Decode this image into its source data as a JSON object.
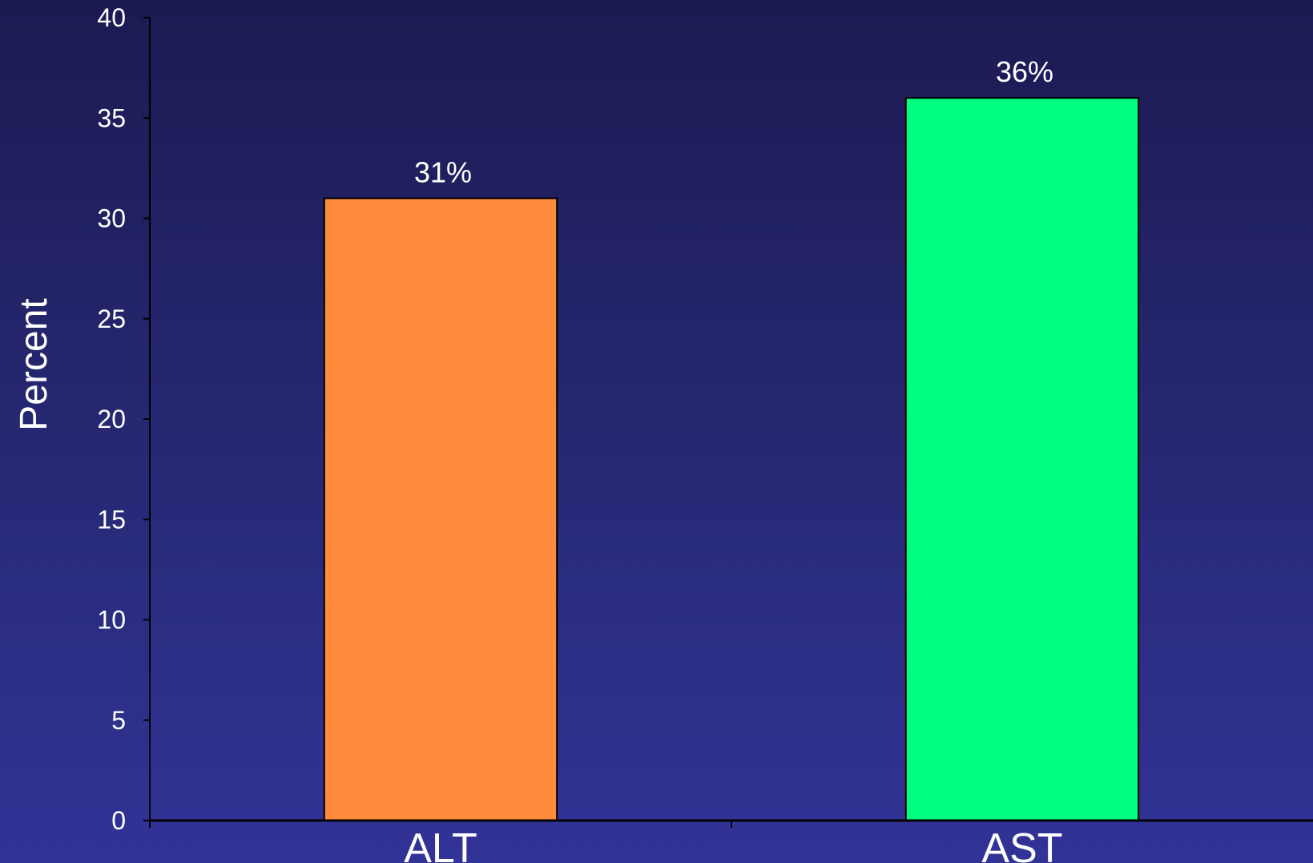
{
  "chart_data": {
    "type": "bar",
    "categories": [
      "ALT",
      "AST"
    ],
    "values": [
      31,
      36
    ],
    "value_labels": [
      "31%",
      "36%"
    ],
    "colors": [
      "#ff8c3c",
      "#00ff80"
    ],
    "title": "",
    "xlabel": "",
    "ylabel": "Percent",
    "ylim": [
      0,
      40
    ],
    "yticks": [
      0,
      5,
      10,
      15,
      20,
      25,
      30,
      35,
      40
    ],
    "grid": false,
    "legend": "none"
  }
}
